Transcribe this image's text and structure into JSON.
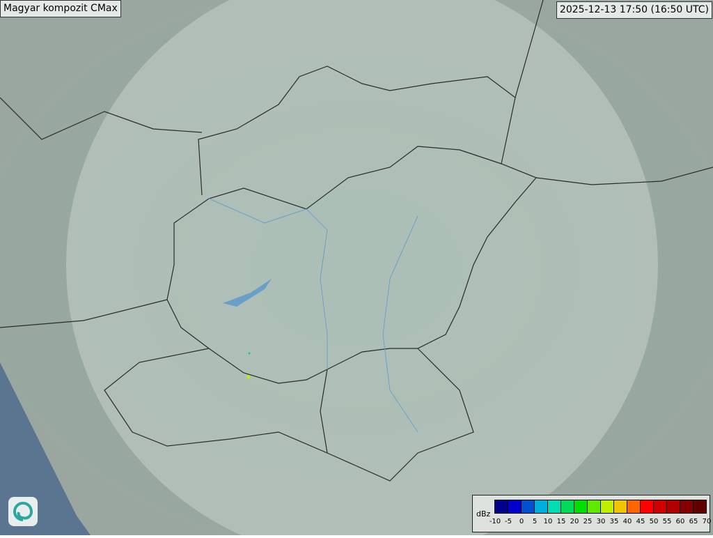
{
  "title": "Magyar kompozit  CMax",
  "timestamp": "2025-12-13 17:50 (16:50 UTC)",
  "legend": {
    "unit": "dBz",
    "ticks": [
      "-10",
      "-5",
      "0",
      "5",
      "10",
      "15",
      "20",
      "25",
      "30",
      "35",
      "40",
      "45",
      "50",
      "55",
      "60",
      "65",
      "70"
    ],
    "colors": [
      "#00008c",
      "#0000cc",
      "#0050d0",
      "#00b0dc",
      "#00dcb4",
      "#00dc5a",
      "#00e000",
      "#60e800",
      "#c0f000",
      "#f0c400",
      "#ff6400",
      "#ff0000",
      "#d00000",
      "#b00000",
      "#820000",
      "#600000"
    ]
  },
  "logo": "radar-swirl-logo"
}
